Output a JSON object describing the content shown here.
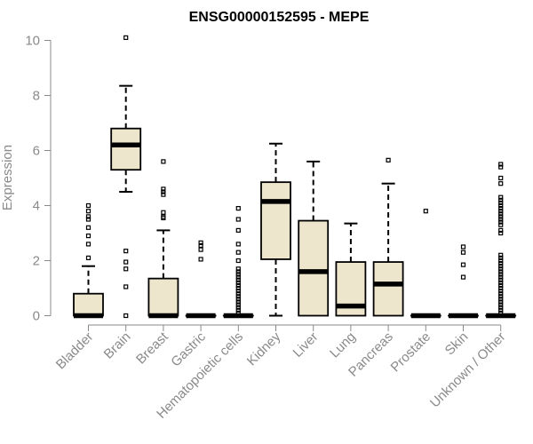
{
  "chart_data": {
    "type": "box",
    "title": "ENSG00000152595 - MEPE",
    "ylabel": "Expression",
    "xlabel": "",
    "ylim": [
      0,
      10.4
    ],
    "yticks": [
      0,
      2,
      4,
      6,
      8,
      10
    ],
    "categories": [
      "Bladder",
      "Brain",
      "Breast",
      "Gastric",
      "Hematopoietic cells",
      "Kidney",
      "Liver",
      "Lung",
      "Pancreas",
      "Prostate",
      "Skin",
      "Unknown / Other"
    ],
    "boxes": [
      {
        "category": "Bladder",
        "whisker_low": 0,
        "q1": 0,
        "median": 0,
        "q3": 0.8,
        "whisker_high": 1.8,
        "outliers": [
          2.1,
          2.6,
          2.9,
          3.2,
          3.5,
          3.6,
          3.8,
          4.0
        ]
      },
      {
        "category": "Brain",
        "whisker_low": 4.5,
        "q1": 5.3,
        "median": 6.2,
        "q3": 6.8,
        "whisker_high": 8.35,
        "outliers": [
          10.1,
          2.35,
          1.95,
          1.7,
          1.05,
          0
        ]
      },
      {
        "category": "Breast",
        "whisker_low": 0,
        "q1": 0,
        "median": 0,
        "q3": 1.35,
        "whisker_high": 3.1,
        "outliers": [
          5.6,
          4.6,
          4.5,
          4.4,
          3.75,
          3.6,
          3.55
        ]
      },
      {
        "category": "Gastric",
        "whisker_low": 0,
        "q1": 0,
        "median": 0,
        "q3": 0,
        "whisker_high": 0,
        "outliers": [
          2.05,
          2.4,
          2.55,
          2.65
        ]
      },
      {
        "category": "Hematopoietic cells",
        "whisker_low": 0,
        "q1": 0,
        "median": 0,
        "q3": 0,
        "whisker_high": 0,
        "outliers": [
          3.9,
          3.5,
          3.1,
          2.6,
          2.3,
          2.0,
          1.7,
          1.6,
          1.5,
          1.4,
          1.3,
          1.2,
          1.1,
          1.0,
          0.9,
          0.8,
          0.7,
          0.6,
          0.5,
          0.4,
          0.3,
          0.2,
          0.1
        ]
      },
      {
        "category": "Kidney",
        "whisker_low": 0,
        "q1": 2.05,
        "median": 4.15,
        "q3": 4.85,
        "whisker_high": 6.25,
        "outliers": []
      },
      {
        "category": "Liver",
        "whisker_low": 0,
        "q1": 0,
        "median": 1.6,
        "q3": 3.45,
        "whisker_high": 5.6,
        "outliers": []
      },
      {
        "category": "Lung",
        "whisker_low": 0,
        "q1": 0,
        "median": 0.35,
        "q3": 1.95,
        "whisker_high": 3.35,
        "outliers": []
      },
      {
        "category": "Pancreas",
        "whisker_low": 0,
        "q1": 0,
        "median": 1.15,
        "q3": 1.95,
        "whisker_high": 4.8,
        "outliers": [
          5.65
        ]
      },
      {
        "category": "Prostate",
        "whisker_low": 0,
        "q1": 0,
        "median": 0,
        "q3": 0,
        "whisker_high": 0,
        "outliers": [
          3.8
        ]
      },
      {
        "category": "Skin",
        "whisker_low": 0,
        "q1": 0,
        "median": 0,
        "q3": 0,
        "whisker_high": 0,
        "outliers": [
          1.4,
          1.85,
          2.3,
          2.5
        ]
      },
      {
        "category": "Unknown / Other",
        "whisker_low": 0,
        "q1": 0,
        "median": 0,
        "q3": 0,
        "whisker_high": 0,
        "outliers": [
          5.5,
          5.4,
          5.0,
          4.8,
          4.3,
          4.2,
          4.1,
          4.0,
          3.9,
          3.8,
          3.7,
          3.6,
          3.5,
          3.4,
          3.3,
          3.1,
          3.0,
          2.2,
          2.1,
          2.0,
          1.9,
          1.8,
          1.7,
          1.6,
          1.5,
          1.4,
          1.3,
          1.2,
          1.1,
          1.0,
          0.9,
          0.8,
          0.7,
          0.6,
          0.5,
          0.4,
          0.3,
          0.2,
          0.1
        ]
      }
    ],
    "colors": {
      "box_fill": "#ede6cc",
      "box_stroke": "#000000",
      "axis": "#8a8a8a",
      "text": "#8a8a8a",
      "title": "#000000"
    },
    "grid": false,
    "legend": "none"
  }
}
